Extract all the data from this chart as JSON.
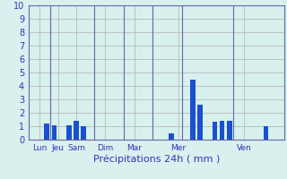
{
  "xlabel": "Précipitations 24h ( mm )",
  "ylim": [
    0,
    10
  ],
  "yticks": [
    0,
    1,
    2,
    3,
    4,
    5,
    6,
    7,
    8,
    9,
    10
  ],
  "background_color": "#d8f0ee",
  "bar_color": "#1a50d0",
  "grid_color": "#b0b0b0",
  "label_color": "#3333bb",
  "n_bars": 35,
  "values": [
    0,
    0,
    1.2,
    1.05,
    0,
    1.05,
    1.4,
    1.0,
    0,
    0,
    0,
    0,
    0,
    0,
    0,
    0,
    0,
    0,
    0,
    0.45,
    0,
    0,
    4.5,
    2.6,
    0,
    1.35,
    1.4,
    1.4,
    0,
    0,
    0,
    0,
    1.0,
    0,
    0
  ],
  "day_labels": [
    "Lun",
    "Jeu",
    "Sam",
    "Dim",
    "Mar",
    "Mer",
    "Ven"
  ],
  "day_tick_positions": [
    1,
    3.5,
    6,
    10,
    14,
    20,
    29
  ],
  "separator_positions": [
    2.5,
    8.5,
    12.5,
    16.5,
    20.5,
    27.5
  ],
  "xlabel_fontsize": 8,
  "ytick_fontsize": 7,
  "xtick_fontsize": 6.5
}
